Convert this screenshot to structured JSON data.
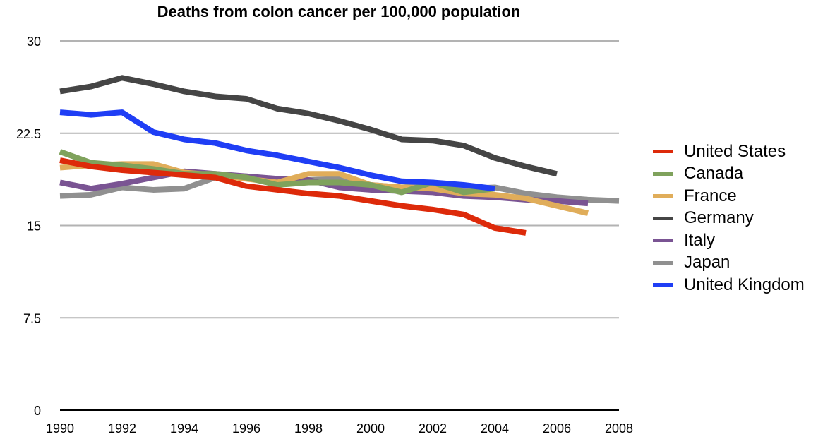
{
  "chart_data": {
    "type": "line",
    "title": "Deaths from colon cancer per 100,000 population",
    "xlabel": "",
    "ylabel": "",
    "xlim": [
      1990,
      2008
    ],
    "ylim": [
      0,
      30
    ],
    "x_ticks": [
      "1990",
      "1992",
      "1994",
      "1996",
      "1998",
      "2000",
      "2002",
      "2004",
      "2006",
      "2008"
    ],
    "y_ticks": [
      "0",
      "7.5",
      "15",
      "22.5",
      "30"
    ],
    "y_tick_values": [
      0,
      7.5,
      15,
      22.5,
      30
    ],
    "grid": true,
    "legend_position": "right",
    "series": [
      {
        "name": "United States",
        "color": "#dd2a0a",
        "x": [
          1990,
          1991,
          1992,
          1993,
          1994,
          1995,
          1996,
          1997,
          1998,
          1999,
          2000,
          2001,
          2002,
          2003,
          2004,
          2005
        ],
        "values": [
          20.3,
          19.8,
          19.5,
          19.3,
          19.1,
          18.9,
          18.2,
          17.9,
          17.6,
          17.4,
          17.0,
          16.6,
          16.3,
          15.9,
          14.8,
          14.4
        ]
      },
      {
        "name": "Canada",
        "color": "#7fa25c",
        "x": [
          1990,
          1991,
          1992,
          1993,
          1994,
          1995,
          1996,
          1997,
          1998,
          1999,
          2000,
          2001,
          2002,
          2003,
          2004
        ],
        "values": [
          21.0,
          20.1,
          19.9,
          19.6,
          19.2,
          19.2,
          18.9,
          18.3,
          18.5,
          18.5,
          18.3,
          17.7,
          18.5,
          17.7,
          18.0
        ]
      },
      {
        "name": "France",
        "color": "#e0ad5a",
        "x": [
          1990,
          1991,
          1992,
          1993,
          1994,
          1995,
          1996,
          1997,
          1998,
          1999,
          2000,
          2001,
          2002,
          2003,
          2004,
          2005,
          2006,
          2007
        ],
        "values": [
          19.7,
          19.9,
          20.0,
          20.0,
          19.3,
          19.1,
          18.8,
          18.5,
          19.2,
          19.2,
          18.3,
          18.1,
          18.0,
          17.6,
          17.5,
          17.2,
          16.6,
          16.0
        ]
      },
      {
        "name": "Germany",
        "color": "#454545",
        "x": [
          1990,
          1991,
          1992,
          1993,
          1994,
          1995,
          1996,
          1997,
          1998,
          1999,
          2000,
          2001,
          2002,
          2003,
          2004,
          2005,
          2006
        ],
        "values": [
          25.9,
          26.3,
          27.0,
          26.5,
          25.9,
          25.5,
          25.3,
          24.5,
          24.1,
          23.5,
          22.8,
          22.0,
          21.9,
          21.5,
          20.5,
          19.8,
          19.2
        ]
      },
      {
        "name": "Italy",
        "color": "#7a5493",
        "x": [
          1990,
          1991,
          1992,
          1993,
          1994,
          1995,
          1996,
          1997,
          1998,
          1999,
          2000,
          2001,
          2002,
          2003,
          2004,
          2005,
          2006,
          2007
        ],
        "values": [
          18.5,
          18.0,
          18.4,
          18.9,
          19.4,
          19.2,
          19.0,
          18.8,
          18.7,
          18.1,
          17.9,
          17.8,
          17.7,
          17.4,
          17.3,
          17.1,
          17.0,
          16.8
        ]
      },
      {
        "name": "Japan",
        "color": "#909090",
        "x": [
          1990,
          1991,
          1992,
          1993,
          1994,
          1995,
          1996,
          1997,
          1998,
          1999,
          2000,
          2001,
          2002,
          2003,
          2004,
          2005,
          2006,
          2007,
          2008
        ],
        "values": [
          17.4,
          17.5,
          18.1,
          17.9,
          18.0,
          18.9,
          19.0,
          18.7,
          18.7,
          18.8,
          18.3,
          18.1,
          18.3,
          18.0,
          18.1,
          17.6,
          17.3,
          17.1,
          17.0
        ]
      },
      {
        "name": "United Kingdom",
        "color": "#1f3ef5",
        "x": [
          1990,
          1991,
          1992,
          1993,
          1994,
          1995,
          1996,
          1997,
          1998,
          1999,
          2000,
          2001,
          2002,
          2003,
          2004
        ],
        "values": [
          24.2,
          24.0,
          24.2,
          22.6,
          22.0,
          21.7,
          21.1,
          20.7,
          20.2,
          19.7,
          19.1,
          18.6,
          18.5,
          18.3,
          18.0
        ]
      }
    ]
  }
}
